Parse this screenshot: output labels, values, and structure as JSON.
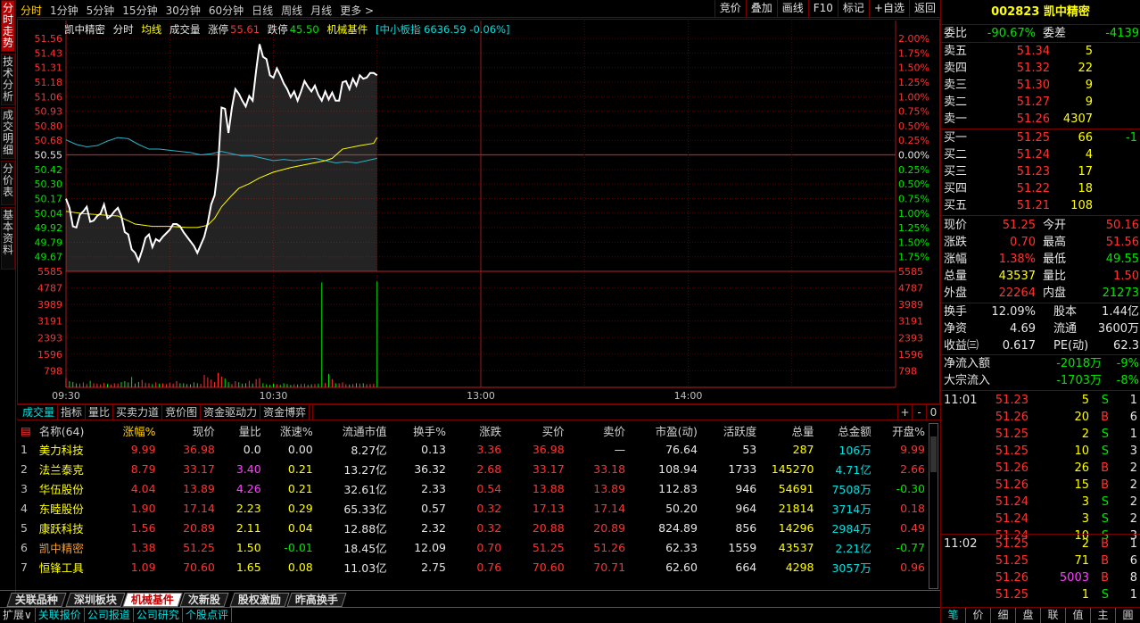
{
  "left_tabs": [
    "分时走势",
    "技术分析",
    "成交明细",
    "分价表",
    "基本资料"
  ],
  "toolbar": {
    "periods": [
      "分时",
      "1分钟",
      "5分钟",
      "15分钟",
      "30分钟",
      "60分钟",
      "日线",
      "周线",
      "月线",
      "更多 >"
    ],
    "buttons": [
      "竞价",
      "叠加",
      "画线",
      "F10",
      "标记",
      "+自选",
      "返回"
    ]
  },
  "legend": {
    "name": "凯中精密",
    "mode": "分时",
    "avg_label": "均线",
    "vol_label": "成交量",
    "limit_up_label": "涨停",
    "limit_up": "55.61",
    "limit_down_label": "跌停",
    "limit_down": "45.50",
    "sector": "机械基件",
    "index": "[中小板指 6636.59 -0.06%]"
  },
  "chart_data": {
    "type": "line",
    "prev_close": 50.55,
    "price_ticks": [
      "51.56",
      "51.43",
      "51.31",
      "51.18",
      "51.06",
      "50.93",
      "50.80",
      "50.68",
      "50.55",
      "50.42",
      "50.30",
      "50.17",
      "50.04",
      "49.92",
      "49.79",
      "49.67"
    ],
    "pct_ticks": [
      "2.00%",
      "1.75%",
      "1.50%",
      "1.25%",
      "1.00%",
      "0.75%",
      "0.50%",
      "0.25%",
      "0.00%",
      "0.25%",
      "0.50%",
      "0.75%",
      "1.00%",
      "1.25%",
      "1.50%",
      "1.75%"
    ],
    "volume_ticks": [
      "5585",
      "4787",
      "3989",
      "3191",
      "2393",
      "1596",
      "798"
    ],
    "time_labels": [
      "09:30",
      "10:30",
      "13:00",
      "14:00"
    ],
    "price": [
      [
        0,
        50.17
      ],
      [
        1,
        50.09
      ],
      [
        2,
        49.93
      ],
      [
        3,
        49.92
      ],
      [
        4,
        50.03
      ],
      [
        5,
        50.06
      ],
      [
        6,
        50.1
      ],
      [
        7,
        49.97
      ],
      [
        8,
        49.98
      ],
      [
        9,
        50.02
      ],
      [
        10,
        50.04
      ],
      [
        11,
        50.12
      ],
      [
        12,
        50.0
      ],
      [
        13,
        50.02
      ],
      [
        14,
        50.06
      ],
      [
        15,
        50.09
      ],
      [
        16,
        50.02
      ],
      [
        17,
        49.88
      ],
      [
        18,
        49.86
      ],
      [
        19,
        49.73
      ],
      [
        20,
        49.7
      ],
      [
        21,
        49.63
      ],
      [
        22,
        49.72
      ],
      [
        23,
        49.83
      ],
      [
        24,
        49.86
      ],
      [
        25,
        49.75
      ],
      [
        26,
        49.82
      ],
      [
        27,
        49.8
      ],
      [
        28,
        49.84
      ],
      [
        29,
        49.87
      ],
      [
        30,
        49.9
      ],
      [
        31,
        49.95
      ],
      [
        32,
        49.95
      ],
      [
        33,
        49.93
      ],
      [
        34,
        49.88
      ],
      [
        35,
        49.84
      ],
      [
        36,
        49.8
      ],
      [
        37,
        49.76
      ],
      [
        38,
        49.7
      ],
      [
        39,
        49.77
      ],
      [
        40,
        49.84
      ],
      [
        41,
        49.96
      ],
      [
        42,
        50.12
      ],
      [
        43,
        50.2
      ],
      [
        44,
        50.45
      ],
      [
        45,
        50.96
      ],
      [
        46,
        50.95
      ],
      [
        47,
        50.74
      ],
      [
        48,
        50.96
      ],
      [
        49,
        51.12
      ],
      [
        50,
        51.08
      ],
      [
        51,
        51.02
      ],
      [
        52,
        50.97
      ],
      [
        53,
        51.06
      ],
      [
        54,
        51.02
      ],
      [
        55,
        51.28
      ],
      [
        56,
        51.51
      ],
      [
        57,
        51.4
      ],
      [
        58,
        51.38
      ],
      [
        59,
        51.24
      ],
      [
        60,
        51.22
      ],
      [
        61,
        51.3
      ],
      [
        62,
        51.24
      ],
      [
        63,
        51.17
      ],
      [
        64,
        51.12
      ],
      [
        65,
        51.05
      ],
      [
        66,
        51.1
      ],
      [
        67,
        51.02
      ],
      [
        68,
        51.1
      ],
      [
        69,
        51.19
      ],
      [
        70,
        51.14
      ],
      [
        71,
        51.1
      ],
      [
        72,
        51.15
      ],
      [
        73,
        51.07
      ],
      [
        74,
        51.02
      ],
      [
        75,
        51.1
      ],
      [
        76,
        51.03
      ],
      [
        77,
        51.09
      ],
      [
        78,
        51.02
      ],
      [
        79,
        51.02
      ],
      [
        80,
        51.18
      ],
      [
        81,
        51.19
      ],
      [
        82,
        51.12
      ],
      [
        83,
        51.21
      ],
      [
        84,
        51.15
      ],
      [
        85,
        51.24
      ],
      [
        86,
        51.21
      ],
      [
        87,
        51.22
      ],
      [
        88,
        51.26
      ],
      [
        89,
        51.26
      ],
      [
        90,
        51.24
      ]
    ],
    "avg": [
      [
        0,
        50.06
      ],
      [
        5,
        50.04
      ],
      [
        10,
        50.03
      ],
      [
        15,
        50.02
      ],
      [
        20,
        49.95
      ],
      [
        25,
        49.93
      ],
      [
        30,
        49.93
      ],
      [
        35,
        49.92
      ],
      [
        38,
        49.92
      ],
      [
        41,
        49.94
      ],
      [
        43,
        50.0
      ],
      [
        45,
        50.1
      ],
      [
        48,
        50.2
      ],
      [
        50,
        50.26
      ],
      [
        53,
        50.3
      ],
      [
        56,
        50.35
      ],
      [
        60,
        50.4
      ],
      [
        65,
        50.44
      ],
      [
        70,
        50.47
      ],
      [
        75,
        50.5
      ],
      [
        77,
        50.52
      ],
      [
        80,
        50.6
      ],
      [
        85,
        50.63
      ],
      [
        89,
        50.65
      ],
      [
        90,
        50.7
      ]
    ],
    "index_line": [
      [
        0,
        50.68
      ],
      [
        3,
        50.64
      ],
      [
        6,
        50.62
      ],
      [
        9,
        50.63
      ],
      [
        12,
        50.67
      ],
      [
        15,
        50.7
      ],
      [
        18,
        50.69
      ],
      [
        21,
        50.64
      ],
      [
        24,
        50.6
      ],
      [
        27,
        50.6
      ],
      [
        30,
        50.59
      ],
      [
        33,
        50.58
      ],
      [
        36,
        50.57
      ],
      [
        39,
        50.55
      ],
      [
        42,
        50.56
      ],
      [
        45,
        50.58
      ],
      [
        48,
        50.56
      ],
      [
        51,
        50.54
      ],
      [
        54,
        50.54
      ],
      [
        57,
        50.52
      ],
      [
        60,
        50.5
      ],
      [
        63,
        50.51
      ],
      [
        66,
        50.5
      ],
      [
        69,
        50.51
      ],
      [
        72,
        50.52
      ],
      [
        75,
        50.5
      ],
      [
        78,
        50.48
      ],
      [
        81,
        50.49
      ],
      [
        84,
        50.48
      ],
      [
        87,
        50.5
      ],
      [
        90,
        50.52
      ]
    ],
    "volume": [
      [
        0,
        450
      ],
      [
        1,
        300
      ],
      [
        2,
        260
      ],
      [
        3,
        190
      ],
      [
        4,
        180
      ],
      [
        5,
        240
      ],
      [
        6,
        160
      ],
      [
        7,
        320
      ],
      [
        8,
        200
      ],
      [
        9,
        180
      ],
      [
        10,
        150
      ],
      [
        11,
        220
      ],
      [
        12,
        160
      ],
      [
        13,
        140
      ],
      [
        14,
        200
      ],
      [
        15,
        180
      ],
      [
        16,
        250
      ],
      [
        17,
        300
      ],
      [
        18,
        240
      ],
      [
        19,
        500
      ],
      [
        20,
        180
      ],
      [
        21,
        260
      ],
      [
        22,
        360
      ],
      [
        23,
        220
      ],
      [
        24,
        200
      ],
      [
        25,
        160
      ],
      [
        26,
        240
      ],
      [
        27,
        180
      ],
      [
        28,
        200
      ],
      [
        29,
        160
      ],
      [
        30,
        220
      ],
      [
        31,
        180
      ],
      [
        32,
        300
      ],
      [
        33,
        200
      ],
      [
        34,
        200
      ],
      [
        35,
        160
      ],
      [
        36,
        150
      ],
      [
        37,
        240
      ],
      [
        38,
        200
      ],
      [
        39,
        170
      ],
      [
        40,
        600
      ],
      [
        41,
        480
      ],
      [
        42,
        380
      ],
      [
        43,
        260
      ],
      [
        44,
        700
      ],
      [
        45,
        520
      ],
      [
        46,
        420
      ],
      [
        47,
        250
      ],
      [
        48,
        160
      ],
      [
        49,
        300
      ],
      [
        50,
        250
      ],
      [
        51,
        180
      ],
      [
        52,
        200
      ],
      [
        53,
        320
      ],
      [
        54,
        180
      ],
      [
        55,
        400
      ],
      [
        56,
        440
      ],
      [
        57,
        200
      ],
      [
        58,
        150
      ],
      [
        59,
        120
      ],
      [
        60,
        180
      ],
      [
        61,
        150
      ],
      [
        62,
        120
      ],
      [
        63,
        200
      ],
      [
        64,
        160
      ],
      [
        65,
        120
      ],
      [
        66,
        150
      ],
      [
        67,
        140
      ],
      [
        68,
        160
      ],
      [
        69,
        180
      ],
      [
        70,
        120
      ],
      [
        71,
        150
      ],
      [
        72,
        160
      ],
      [
        73,
        180
      ],
      [
        74,
        5050
      ],
      [
        75,
        220
      ],
      [
        76,
        650
      ],
      [
        77,
        400
      ],
      [
        78,
        200
      ],
      [
        79,
        200
      ],
      [
        80,
        240
      ],
      [
        81,
        150
      ],
      [
        82,
        140
      ],
      [
        83,
        160
      ],
      [
        84,
        200
      ],
      [
        85,
        180
      ],
      [
        86,
        200
      ],
      [
        87,
        150
      ],
      [
        88,
        160
      ],
      [
        89,
        170
      ],
      [
        90,
        5100
      ]
    ],
    "ylim_price": [
      49.54,
      51.56
    ],
    "ylim_volume": [
      0,
      5585
    ],
    "volume_colors": [
      "red",
      "green"
    ]
  },
  "chart_tabs": [
    "成交量",
    "指标",
    "量比",
    "买卖力道",
    "竞价图",
    "资金驱动力",
    "资金博弈"
  ],
  "chart_tabs_right": [
    "+",
    "-",
    "0"
  ],
  "table": {
    "count": "名称(64)",
    "headers": [
      "涨幅%",
      "现价",
      "量比",
      "涨速%",
      "流通市值",
      "换手%",
      "涨跌",
      "买价",
      "卖价",
      "市盈(动)",
      "活跃度",
      "总量",
      "总金额",
      "开盘%"
    ],
    "rows": [
      {
        "no": "1",
        "name": "美力科技",
        "pct": "9.99",
        "price": "36.98",
        "vr": "0.0",
        "speed": "0.00",
        "mcap": "8.27亿",
        "turn": "0.13",
        "chg": "3.36",
        "bid": "36.98",
        "ask": "—",
        "pe": "76.64",
        "act": "53",
        "vol": "287",
        "amt": "106万",
        "open": "9.99"
      },
      {
        "no": "2",
        "name": "法兰泰克",
        "pct": "8.79",
        "price": "33.17",
        "vr": "3.40",
        "speed": "0.21",
        "mcap": "13.27亿",
        "turn": "36.32",
        "chg": "2.68",
        "bid": "33.17",
        "ask": "33.18",
        "pe": "108.94",
        "act": "1733",
        "vol": "145270",
        "amt": "4.71亿",
        "open": "2.66"
      },
      {
        "no": "3",
        "name": "华伍股份",
        "pct": "4.04",
        "price": "13.89",
        "vr": "4.26",
        "speed": "0.21",
        "mcap": "32.61亿",
        "turn": "2.33",
        "chg": "0.54",
        "bid": "13.88",
        "ask": "13.89",
        "pe": "112.83",
        "act": "946",
        "vol": "54691",
        "amt": "7508万",
        "open": "-0.30"
      },
      {
        "no": "4",
        "name": "东睦股份",
        "pct": "1.90",
        "price": "17.14",
        "vr": "2.23",
        "speed": "0.29",
        "mcap": "65.33亿",
        "turn": "0.57",
        "chg": "0.32",
        "bid": "17.13",
        "ask": "17.14",
        "pe": "50.20",
        "act": "964",
        "vol": "21814",
        "amt": "3714万",
        "open": "0.18"
      },
      {
        "no": "5",
        "name": "康跃科技",
        "pct": "1.56",
        "price": "20.89",
        "vr": "2.11",
        "speed": "0.04",
        "mcap": "12.88亿",
        "turn": "2.32",
        "chg": "0.32",
        "bid": "20.88",
        "ask": "20.89",
        "pe": "824.89",
        "act": "856",
        "vol": "14296",
        "amt": "2984万",
        "open": "0.49"
      },
      {
        "no": "6",
        "name": "凯中精密",
        "pct": "1.38",
        "price": "51.25",
        "vr": "1.50",
        "speed": "-0.01",
        "mcap": "18.45亿",
        "turn": "12.09",
        "chg": "0.70",
        "bid": "51.25",
        "ask": "51.26",
        "pe": "62.33",
        "act": "1559",
        "vol": "43537",
        "amt": "2.21亿",
        "open": "-0.77"
      },
      {
        "no": "7",
        "name": "恒锋工具",
        "pct": "1.09",
        "price": "70.60",
        "vr": "1.65",
        "speed": "0.08",
        "mcap": "11.03亿",
        "turn": "2.75",
        "chg": "0.76",
        "bid": "70.60",
        "ask": "70.71",
        "pe": "62.60",
        "act": "664",
        "vol": "4298",
        "amt": "3057万",
        "open": "0.96"
      }
    ]
  },
  "sector_tabs": [
    "关联品种",
    "深圳板块",
    "机械基件",
    "次新股",
    "股权激励",
    "昨高换手"
  ],
  "statusbar": [
    "扩展∨",
    "关联报价",
    "公司报道",
    "公司研究",
    "个股点评"
  ],
  "right": {
    "title": "002823 凯中精密",
    "wb_label": "委比",
    "wb": "-90.67%",
    "wc_label": "委差",
    "wc": "-4139",
    "asks": [
      [
        "卖五",
        "51.34",
        "5"
      ],
      [
        "卖四",
        "51.32",
        "22"
      ],
      [
        "卖三",
        "51.30",
        "9"
      ],
      [
        "卖二",
        "51.27",
        "9"
      ],
      [
        "卖一",
        "51.26",
        "4307"
      ]
    ],
    "bids": [
      [
        "买一",
        "51.25",
        "66",
        "-1"
      ],
      [
        "买二",
        "51.24",
        "4",
        ""
      ],
      [
        "买三",
        "51.23",
        "17",
        ""
      ],
      [
        "买四",
        "51.22",
        "18",
        ""
      ],
      [
        "买五",
        "51.21",
        "108",
        ""
      ]
    ],
    "stats": [
      [
        "现价",
        "51.25",
        "今开",
        "50.16",
        "red",
        "red"
      ],
      [
        "涨跌",
        "0.70",
        "最高",
        "51.56",
        "red",
        "red"
      ],
      [
        "涨幅",
        "1.38%",
        "最低",
        "49.55",
        "red",
        "grn"
      ],
      [
        "总量",
        "43537",
        "量比",
        "1.50",
        "yel",
        "red"
      ],
      [
        "外盘",
        "22264",
        "内盘",
        "21273",
        "red",
        "grn"
      ]
    ],
    "stats2": [
      [
        "换手",
        "12.09%",
        "股本",
        "1.44亿"
      ],
      [
        "净资",
        "4.69",
        "流通",
        "3600万"
      ],
      [
        "收益㈢",
        "0.617",
        "PE(动)",
        "62.3"
      ]
    ],
    "flows": [
      [
        "净流入额",
        "-2018万",
        "-9%"
      ],
      [
        "大宗流入",
        "-1703万",
        "-8%"
      ]
    ],
    "ticks1_time": "11:01",
    "ticks1": [
      [
        "51.23",
        "5",
        "S",
        "1"
      ],
      [
        "51.26",
        "20",
        "B",
        "6"
      ],
      [
        "51.25",
        "2",
        "S",
        "1"
      ],
      [
        "51.25",
        "10",
        "S",
        "3"
      ],
      [
        "51.26",
        "26",
        "B",
        "2"
      ],
      [
        "51.26",
        "15",
        "B",
        "2"
      ],
      [
        "51.24",
        "3",
        "S",
        "2"
      ],
      [
        "51.24",
        "3",
        "S",
        "2"
      ],
      [
        "51.24",
        "10",
        "S",
        "3"
      ]
    ],
    "ticks2_time": "11:02",
    "ticks2": [
      [
        "51.25",
        "2",
        "B",
        "1"
      ],
      [
        "51.25",
        "71",
        "B",
        "6"
      ],
      [
        "51.26",
        "5003",
        "B",
        "8"
      ],
      [
        "51.25",
        "1",
        "S",
        "1"
      ]
    ],
    "bottom_tabs": [
      "笔",
      "价",
      "细",
      "盘",
      "联",
      "值",
      "主",
      "圓"
    ]
  }
}
